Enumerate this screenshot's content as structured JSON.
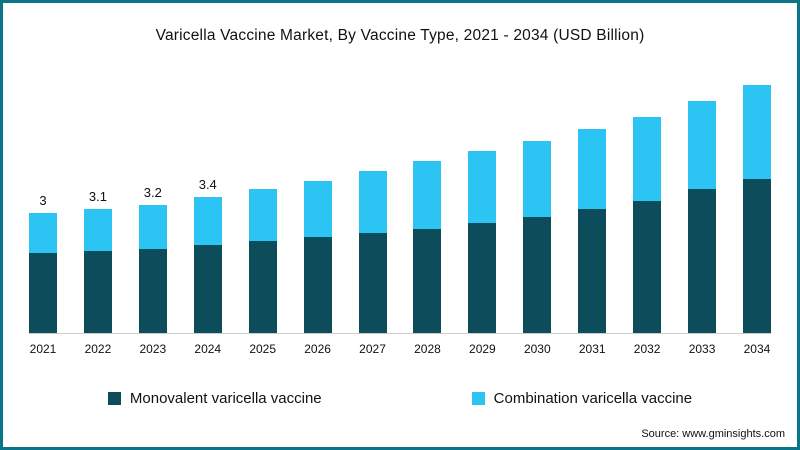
{
  "chart_data": {
    "type": "bar",
    "stacked": true,
    "title": "Varicella Vaccine Market, By Vaccine Type, 2021 - 2034 (USD Billion)",
    "xlabel": "",
    "ylabel": "",
    "grid": false,
    "legend_position": "bottom",
    "categories": [
      "2021",
      "2022",
      "2023",
      "2024",
      "2025",
      "2026",
      "2027",
      "2028",
      "2029",
      "2030",
      "2031",
      "2032",
      "2033",
      "2034"
    ],
    "series": [
      {
        "name": "Monovalent varicella vaccine",
        "color": "#0d4c5b",
        "values": [
          2.0,
          2.05,
          2.1,
          2.2,
          2.3,
          2.4,
          2.5,
          2.6,
          2.75,
          2.9,
          3.1,
          3.3,
          3.6,
          3.85
        ]
      },
      {
        "name": "Combination varicella vaccine",
        "color": "#2bc4f3",
        "values": [
          1.0,
          1.05,
          1.1,
          1.2,
          1.3,
          1.4,
          1.55,
          1.7,
          1.8,
          1.9,
          2.0,
          2.1,
          2.2,
          2.35
        ]
      }
    ],
    "bar_labels": [
      "3",
      "3.1",
      "3.2",
      "3.4",
      "",
      "",
      "",
      "",
      "",
      "",
      "",
      "",
      "",
      ""
    ],
    "totals": [
      3.0,
      3.1,
      3.2,
      3.4,
      3.6,
      3.8,
      4.05,
      4.3,
      4.55,
      4.8,
      5.1,
      5.4,
      5.8,
      6.2
    ]
  },
  "source": "Source: www.gminsights.com",
  "colors": {
    "frame_border": "#0a7489",
    "axis_line": "#cccccc",
    "monovalent": "#0d4c5b",
    "combination": "#2bc4f3"
  }
}
